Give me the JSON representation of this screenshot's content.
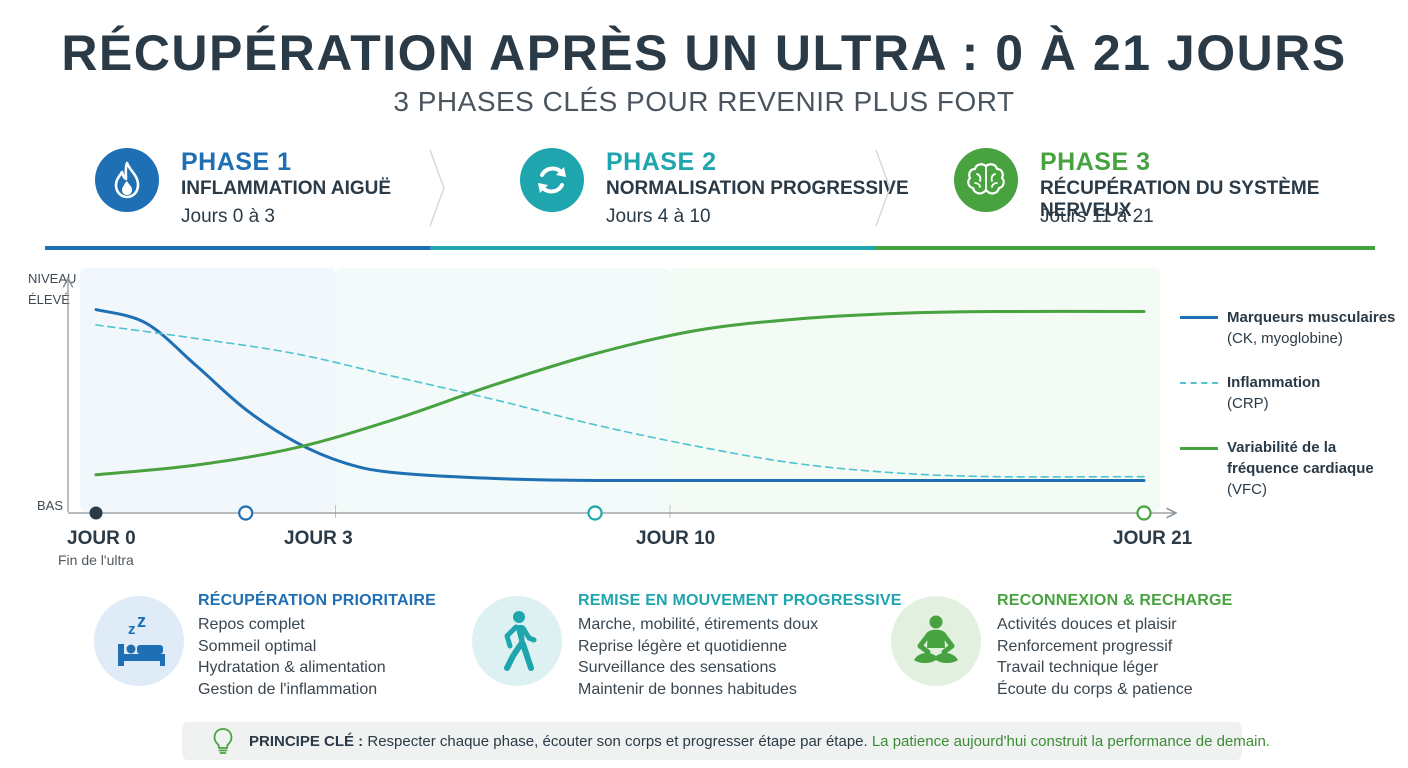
{
  "title": "RÉCUPÉRATION APRÈS UN ULTRA : 0 À 21 JOURS",
  "subtitle": "3 PHASES CLÉS POUR REVENIR PLUS FORT",
  "colors": {
    "phase1": "#1f6fb4",
    "phase2": "#1fa5ad",
    "phase3": "#47a23f",
    "dashed": "#4fc3d0",
    "text": "#263844"
  },
  "phases": [
    {
      "label": "PHASE 1",
      "name": "INFLAMMATION AIGUË",
      "days": "Jours 0 à 3",
      "icon": "flame-icon"
    },
    {
      "label": "PHASE 2",
      "name": "NORMALISATION PROGRESSIVE",
      "days": "Jours 4 à 10",
      "icon": "cycle-icon"
    },
    {
      "label": "PHASE 3",
      "name": "RÉCUPÉRATION DU SYSTÈME NERVEUX",
      "days": "Jours 11 à 21",
      "icon": "brain-icon"
    }
  ],
  "axis": {
    "y_top": "NIVEAU\nÉLEVÉ",
    "y_bottom": "BAS"
  },
  "chart_data": {
    "type": "line",
    "x_unit": "jour",
    "xlim": [
      0,
      21
    ],
    "ylim": [
      0,
      1
    ],
    "y_scale": "qualitative (BAS → NIVEAU ÉLEVÉ)",
    "x_ticks": [
      {
        "x": 0,
        "label": "JOUR 0",
        "note": "Fin de l'ultra"
      },
      {
        "x": 3,
        "label": "JOUR 3",
        "note": ""
      },
      {
        "x": 10,
        "label": "JOUR 10",
        "note": ""
      },
      {
        "x": 21,
        "label": "JOUR 21",
        "note": ""
      }
    ],
    "phase_bands": [
      {
        "from": 0,
        "to": 4.8
      },
      {
        "from": 4.8,
        "to": 11.5
      },
      {
        "from": 11.5,
        "to": 21
      }
    ],
    "series": [
      {
        "name": "Marqueurs musculaires",
        "detail": "(CK, myoglobine)",
        "style": "solid",
        "color": "#1f6fb4",
        "x": [
          0,
          1,
          2,
          3,
          4,
          5,
          6,
          8,
          10,
          14,
          18,
          21
        ],
        "y": [
          0.95,
          0.88,
          0.66,
          0.43,
          0.26,
          0.15,
          0.1,
          0.07,
          0.06,
          0.06,
          0.06,
          0.06
        ]
      },
      {
        "name": "Inflammation",
        "detail": "(CRP)",
        "style": "dashed",
        "color": "#4fc3d0",
        "x": [
          0,
          2,
          4,
          6,
          8,
          10,
          12,
          14,
          16,
          18,
          21
        ],
        "y": [
          0.87,
          0.8,
          0.72,
          0.6,
          0.48,
          0.35,
          0.24,
          0.15,
          0.1,
          0.08,
          0.08
        ]
      },
      {
        "name": "Variabilité de la fréquence cardiaque",
        "detail": "(VFC)",
        "style": "solid",
        "color": "#47a23f",
        "x": [
          0,
          2,
          4,
          6,
          8,
          10,
          12,
          14,
          16,
          18,
          21
        ],
        "y": [
          0.09,
          0.14,
          0.23,
          0.38,
          0.56,
          0.72,
          0.84,
          0.9,
          0.93,
          0.94,
          0.94
        ]
      }
    ]
  },
  "legend": [
    {
      "name": "Marqueurs musculaires",
      "detail": "(CK, myoglobine)"
    },
    {
      "name": "Inflammation",
      "detail": "(CRP)"
    },
    {
      "name": "Variabilité de la fréquence cardiaque",
      "detail": "(VFC)"
    }
  ],
  "activities": [
    {
      "title": "RÉCUPÉRATION PRIORITAIRE",
      "icon": "sleep-bed-icon",
      "items": [
        "Repos complet",
        "Sommeil optimal",
        "Hydratation & alimentation",
        "Gestion de l'inflammation"
      ]
    },
    {
      "title": "REMISE EN MOUVEMENT PROGRESSIVE",
      "icon": "walking-person-icon",
      "items": [
        "Marche, mobilité, étirements doux",
        "Reprise légère et quotidienne",
        "Surveillance des sensations",
        "Maintenir de bonnes habitudes"
      ]
    },
    {
      "title": "RECONNEXION & RECHARGE",
      "icon": "meditation-icon",
      "items": [
        "Activités douces et plaisir",
        "Renforcement progressif",
        "Travail technique léger",
        "Écoute du corps & patience"
      ]
    }
  ],
  "footer": {
    "key": "PRINCIPE CLÉ :",
    "text": "Respecter chaque phase, écouter son corps et progresser étape par étape.",
    "highlight": "La patience aujourd'hui construit la performance de demain.",
    "icon": "lightbulb-icon"
  }
}
